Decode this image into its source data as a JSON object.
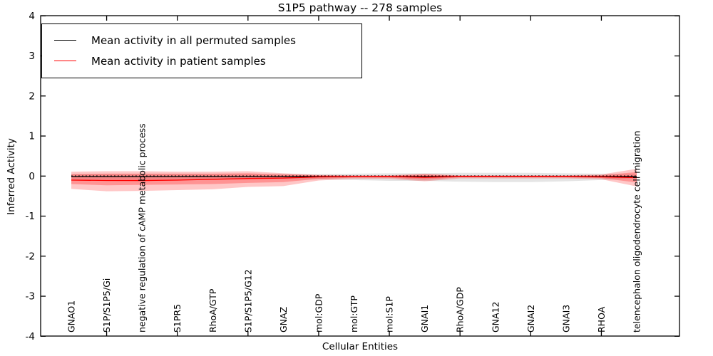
{
  "chart_data": {
    "type": "line",
    "title": "S1P5 pathway -- 278 samples",
    "xlabel": "Cellular Entities",
    "ylabel": "Inferred Activity",
    "ylim": [
      -4,
      4
    ],
    "yticks": [
      -4,
      -3,
      -2,
      -1,
      0,
      1,
      2,
      3,
      4
    ],
    "grid": false,
    "legend_position": "upper left",
    "legend": [
      {
        "label": "Mean activity in all permuted samples",
        "color": "#000000"
      },
      {
        "label": "Mean activity in patient samples",
        "color": "#ff0000"
      }
    ],
    "categories": [
      "GNAO1",
      "S1P/S1P5/Gi",
      "negative regulation of cAMP metabolic process",
      "S1PR5",
      "RhoA/GTP",
      "S1P/S1P5/G12",
      "GNAZ",
      "mol:GDP",
      "mol:GTP",
      "mol:S1P",
      "GNAI1",
      "RhoA/GDP",
      "GNA12",
      "GNAI2",
      "GNAI3",
      "RHOA",
      "telencephalon oligodendrocyte cell migration"
    ],
    "series": [
      {
        "name": "zero-reference",
        "color": "#000000",
        "style": "dotted",
        "width": 1.6,
        "values": [
          0,
          0,
          0,
          0,
          0,
          0,
          0,
          0,
          0,
          0,
          0,
          0,
          0,
          0,
          0,
          0,
          0
        ]
      },
      {
        "name": "Mean activity in all permuted samples",
        "color": "#000000",
        "style": "solid",
        "width": 1.2,
        "values": [
          -0.01,
          -0.01,
          -0.01,
          -0.01,
          -0.01,
          -0.01,
          -0.01,
          -0.01,
          -0.01,
          -0.01,
          -0.01,
          -0.01,
          -0.01,
          -0.01,
          -0.01,
          -0.01,
          -0.01
        ]
      },
      {
        "name": "Mean activity in patient samples",
        "color": "#ff0000",
        "style": "solid",
        "width": 1.4,
        "values": [
          -0.1,
          -0.11,
          -0.11,
          -0.1,
          -0.08,
          -0.06,
          -0.05,
          -0.02,
          -0.01,
          -0.01,
          -0.03,
          -0.01,
          -0.01,
          -0.01,
          -0.01,
          -0.02,
          -0.04
        ]
      }
    ],
    "bands": [
      {
        "name": "permuted-samples-range",
        "color": "#000000",
        "opacity": 0.1,
        "upper": [
          0.05,
          0.05,
          0.05,
          0.05,
          0.05,
          0.05,
          0.05,
          0.05,
          0.06,
          0.07,
          0.07,
          0.08,
          0.08,
          0.08,
          0.07,
          0.06,
          0.04
        ],
        "lower": [
          -0.07,
          -0.07,
          -0.07,
          -0.07,
          -0.07,
          -0.07,
          -0.07,
          -0.08,
          -0.1,
          -0.12,
          -0.12,
          -0.14,
          -0.15,
          -0.15,
          -0.13,
          -0.1,
          -0.05
        ]
      },
      {
        "name": "patient-samples-outer-range",
        "color": "#ff0000",
        "opacity": 0.22,
        "upper": [
          0.11,
          0.12,
          0.12,
          0.11,
          0.11,
          0.12,
          0.07,
          0.03,
          0.02,
          0.02,
          0.06,
          0.02,
          0.02,
          0.02,
          0.02,
          0.04,
          0.18
        ],
        "lower": [
          -0.32,
          -0.38,
          -0.37,
          -0.35,
          -0.33,
          -0.27,
          -0.25,
          -0.11,
          -0.07,
          -0.07,
          -0.13,
          -0.06,
          -0.06,
          -0.06,
          -0.06,
          -0.08,
          -0.26
        ]
      },
      {
        "name": "patient-samples-inner-range",
        "color": "#ff0000",
        "opacity": 0.26,
        "upper": [
          0.05,
          0.06,
          0.06,
          0.06,
          0.06,
          0.07,
          0.04,
          0.02,
          0.01,
          0.01,
          0.04,
          0.01,
          0.01,
          0.01,
          0.01,
          0.02,
          0.1
        ],
        "lower": [
          -0.2,
          -0.23,
          -0.22,
          -0.21,
          -0.2,
          -0.17,
          -0.15,
          -0.07,
          -0.04,
          -0.04,
          -0.09,
          -0.03,
          -0.03,
          -0.03,
          -0.03,
          -0.05,
          -0.16
        ]
      }
    ]
  }
}
